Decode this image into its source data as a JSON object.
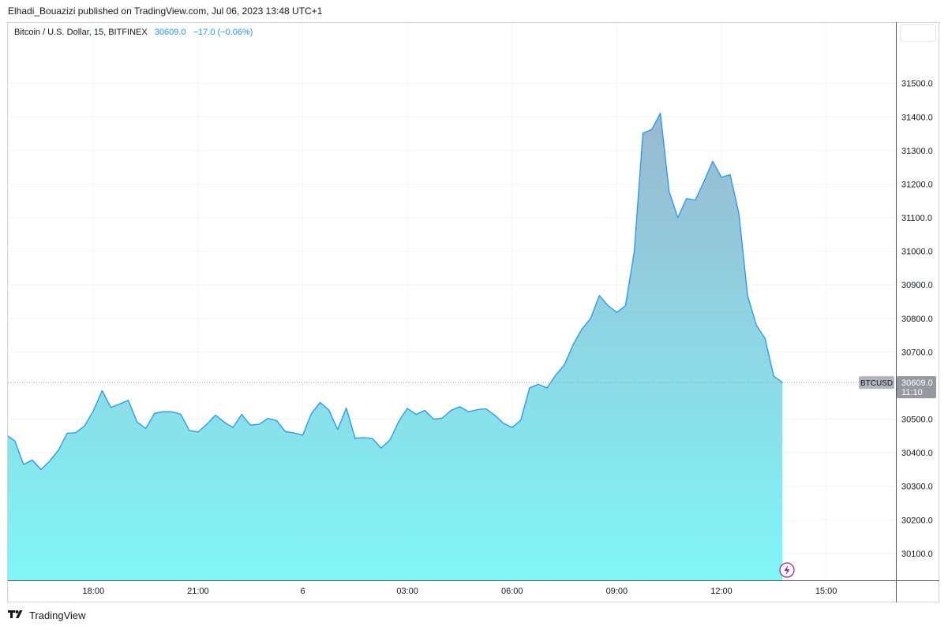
{
  "header": {
    "publisher_line": "Elhadi_Bouazizi published on TradingView.com, Jul 06, 2023 13:48 UTC+1"
  },
  "legend": {
    "symbol": "Bitcoin / U.S. Dollar, 15, BITFINEX",
    "last": "30609.0",
    "change": "−17.0 (−0.06%)"
  },
  "price_label": {
    "ticker": "BTCUSD",
    "price": "30609.0",
    "countdown": "11:10"
  },
  "footer": {
    "brand": "TradingView"
  },
  "colors": {
    "line": "#2196f3",
    "fill_top": "#9ab8d0",
    "fill_bottom": "#7ff6f7",
    "grid": "#f0f3fa",
    "axis_text": "#131722",
    "badge_ticker": "#b2b5be",
    "badge_price": "#9598a1",
    "lightning": "#9c27b0"
  },
  "chart_data": {
    "type": "area",
    "title": "",
    "xlabel": "",
    "ylabel": "",
    "ylim": [
      30020,
      31680
    ],
    "y_ticks": [
      30100,
      30200,
      30300,
      30400,
      30500,
      30600,
      30700,
      30800,
      30900,
      31000,
      31100,
      31200,
      31300,
      31400,
      31500
    ],
    "y_tick_labels": [
      "30100.0",
      "30200.0",
      "30300.0",
      "30400.0",
      "30500.0",
      "30600.0",
      "30700.0",
      "30800.0",
      "30900.0",
      "31000.0",
      "31100.0",
      "31200.0",
      "31300.0",
      "31400.0",
      "31500.0"
    ],
    "x_ticks": [
      {
        "hours": 18,
        "label": "18:00"
      },
      {
        "hours": 21,
        "label": "21:00"
      },
      {
        "hours": 24,
        "label": "6"
      },
      {
        "hours": 27,
        "label": "03:00"
      },
      {
        "hours": 30,
        "label": "06:00"
      },
      {
        "hours": 33,
        "label": "09:00"
      },
      {
        "hours": 36,
        "label": "12:00"
      },
      {
        "hours": 39,
        "label": "15:00"
      }
    ],
    "x_range_hours": [
      15.55,
      41.0
    ],
    "series": [
      {
        "values": [
          [
            15.55,
            30450
          ],
          [
            15.75,
            30435
          ],
          [
            16.0,
            30365
          ],
          [
            16.25,
            30378
          ],
          [
            16.5,
            30350
          ],
          [
            16.75,
            30375
          ],
          [
            17.0,
            30408
          ],
          [
            17.25,
            30458
          ],
          [
            17.5,
            30460
          ],
          [
            17.75,
            30480
          ],
          [
            18.0,
            30525
          ],
          [
            18.25,
            30585
          ],
          [
            18.5,
            30535
          ],
          [
            18.75,
            30545
          ],
          [
            19.0,
            30556
          ],
          [
            19.25,
            30492
          ],
          [
            19.5,
            30472
          ],
          [
            19.75,
            30517
          ],
          [
            20.0,
            30522
          ],
          [
            20.25,
            30522
          ],
          [
            20.5,
            30515
          ],
          [
            20.75,
            30466
          ],
          [
            21.0,
            30462
          ],
          [
            21.25,
            30485
          ],
          [
            21.5,
            30512
          ],
          [
            21.75,
            30491
          ],
          [
            22.0,
            30475
          ],
          [
            22.25,
            30514
          ],
          [
            22.5,
            30482
          ],
          [
            22.75,
            30485
          ],
          [
            23.0,
            30502
          ],
          [
            23.25,
            30496
          ],
          [
            23.5,
            30463
          ],
          [
            23.75,
            30459
          ],
          [
            24.0,
            30452
          ],
          [
            24.25,
            30517
          ],
          [
            24.5,
            30550
          ],
          [
            24.75,
            30527
          ],
          [
            25.0,
            30469
          ],
          [
            25.25,
            30533
          ],
          [
            25.5,
            30443
          ],
          [
            25.75,
            30445
          ],
          [
            26.0,
            30442
          ],
          [
            26.25,
            30414
          ],
          [
            26.5,
            30438
          ],
          [
            26.75,
            30493
          ],
          [
            27.0,
            30532
          ],
          [
            27.25,
            30514
          ],
          [
            27.5,
            30526
          ],
          [
            27.75,
            30500
          ],
          [
            28.0,
            30503
          ],
          [
            28.25,
            30526
          ],
          [
            28.5,
            30537
          ],
          [
            28.75,
            30522
          ],
          [
            29.0,
            30528
          ],
          [
            29.25,
            30531
          ],
          [
            29.5,
            30512
          ],
          [
            29.75,
            30488
          ],
          [
            30.0,
            30475
          ],
          [
            30.25,
            30497
          ],
          [
            30.5,
            30593
          ],
          [
            30.75,
            30604
          ],
          [
            31.0,
            30593
          ],
          [
            31.25,
            30631
          ],
          [
            31.5,
            30662
          ],
          [
            31.75,
            30722
          ],
          [
            32.0,
            30768
          ],
          [
            32.25,
            30800
          ],
          [
            32.5,
            30868
          ],
          [
            32.75,
            30838
          ],
          [
            33.0,
            30818
          ],
          [
            33.25,
            30838
          ],
          [
            33.5,
            30998
          ],
          [
            33.75,
            31352
          ],
          [
            34.0,
            31362
          ],
          [
            34.25,
            31411
          ],
          [
            34.5,
            31178
          ],
          [
            34.75,
            31100
          ],
          [
            35.0,
            31157
          ],
          [
            35.25,
            31152
          ],
          [
            35.5,
            31208
          ],
          [
            35.75,
            31268
          ],
          [
            36.0,
            31220
          ],
          [
            36.25,
            31228
          ],
          [
            36.5,
            31112
          ],
          [
            36.75,
            30868
          ],
          [
            37.0,
            30780
          ],
          [
            37.25,
            30740
          ],
          [
            37.5,
            30628
          ],
          [
            37.75,
            30609
          ]
        ]
      }
    ]
  }
}
